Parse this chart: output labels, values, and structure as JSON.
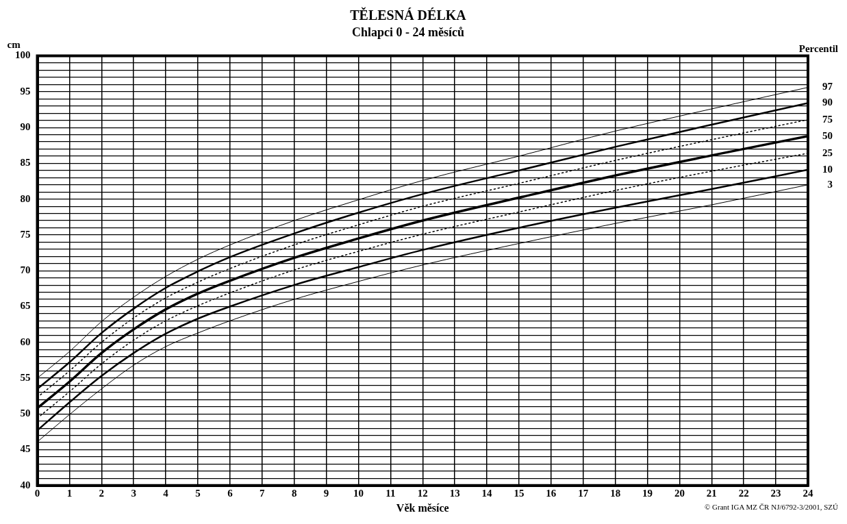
{
  "chart_data": {
    "type": "line",
    "title": "TĚLESNÁ DÉLKA",
    "subtitle": "Chlapci 0 - 24 měsíců",
    "xlabel": "Věk měsíce",
    "ylabel": "cm",
    "legend_title": "Percentil",
    "annotations": [
      "© Grant IGA MZ ČR NJ/6792-3/2001, SZÚ"
    ],
    "x": [
      0,
      1,
      2,
      3,
      4,
      5,
      6,
      8,
      10,
      12,
      15,
      18,
      21,
      24
    ],
    "series": [
      {
        "name": "97",
        "color": "#000000",
        "line_style": "solid",
        "values": [
          55,
          58.7,
          62.9,
          66.3,
          69.2,
          71.6,
          73.6,
          77,
          79.9,
          82.6,
          86,
          89.5,
          92.6,
          95.6
        ]
      },
      {
        "name": "90",
        "color": "#000000",
        "line_style": "solid",
        "values": [
          53.5,
          57.2,
          61.3,
          64.7,
          67.6,
          69.9,
          71.9,
          75.2,
          78.1,
          80.7,
          84,
          87.3,
          90.4,
          93.4
        ]
      },
      {
        "name": "75",
        "color": "#000000",
        "line_style": "dotted",
        "values": [
          52.3,
          56,
          60,
          63.4,
          66.2,
          68.4,
          70.3,
          73.6,
          76.4,
          79,
          82.2,
          85.4,
          88.3,
          91.1
        ]
      },
      {
        "name": "50",
        "color": "#000000",
        "line_style": "solid",
        "values": [
          50.8,
          54.5,
          58.5,
          61.8,
          64.6,
          66.8,
          68.6,
          71.8,
          74.5,
          77,
          80.2,
          83.3,
          86.1,
          88.8
        ]
      },
      {
        "name": "25",
        "color": "#000000",
        "line_style": "dotted",
        "values": [
          49.4,
          53.1,
          57,
          60.3,
          63,
          65.1,
          66.9,
          70.1,
          72.7,
          75.1,
          78.2,
          81.2,
          83.9,
          86.4
        ]
      },
      {
        "name": "10",
        "color": "#000000",
        "line_style": "solid",
        "values": [
          47.7,
          51.6,
          55.3,
          58.5,
          61.2,
          63.3,
          65,
          68,
          70.5,
          72.9,
          76,
          78.8,
          81.4,
          84.1
        ]
      },
      {
        "name": "3",
        "color": "#000000",
        "line_style": "solid",
        "values": [
          46.1,
          49.9,
          53.5,
          56.8,
          59.4,
          61.3,
          63,
          66,
          68.5,
          70.8,
          73.8,
          76.6,
          79.2,
          82
        ]
      }
    ],
    "xlim": [
      0,
      24
    ],
    "xticks": [
      0,
      1,
      2,
      3,
      4,
      5,
      6,
      7,
      8,
      9,
      10,
      11,
      12,
      13,
      14,
      15,
      16,
      17,
      18,
      19,
      20,
      21,
      22,
      23,
      24
    ],
    "ylim": [
      40,
      100
    ],
    "yticks": [
      40,
      {
        "value": 41,
        "label": null
      },
      {
        "value": 42,
        "label": null
      },
      {
        "value": 43,
        "label": null
      },
      {
        "value": 44,
        "label": null
      },
      45,
      {
        "value": 46,
        "label": null
      },
      {
        "value": 47,
        "label": null
      },
      {
        "value": 48,
        "label": null
      },
      {
        "value": 49,
        "label": null
      },
      50,
      {
        "value": 51,
        "label": null
      },
      {
        "value": 52,
        "label": null
      },
      {
        "value": 53,
        "label": null
      },
      {
        "value": 54,
        "label": null
      },
      55,
      {
        "value": 56,
        "label": null
      },
      {
        "value": 57,
        "label": null
      },
      {
        "value": 58,
        "label": null
      },
      {
        "value": 59,
        "label": null
      },
      60,
      {
        "value": 61,
        "label": null
      },
      {
        "value": 62,
        "label": null
      },
      {
        "value": 63,
        "label": null
      },
      {
        "value": 64,
        "label": null
      },
      65,
      {
        "value": 66,
        "label": null
      },
      {
        "value": 67,
        "label": null
      },
      {
        "value": 68,
        "label": null
      },
      {
        "value": 69,
        "label": null
      },
      70,
      {
        "value": 71,
        "label": null
      },
      {
        "value": 72,
        "label": null
      },
      {
        "value": 73,
        "label": null
      },
      {
        "value": 74,
        "label": null
      },
      75,
      {
        "value": 76,
        "label": null
      },
      {
        "value": 77,
        "label": null
      },
      {
        "value": 78,
        "label": null
      },
      {
        "value": 79,
        "label": null
      },
      80,
      {
        "value": 81,
        "label": null
      },
      {
        "value": 82,
        "label": null
      },
      {
        "value": 83,
        "label": null
      },
      {
        "value": 84,
        "label": null
      },
      85,
      {
        "value": 86,
        "label": null
      },
      {
        "value": 87,
        "label": null
      },
      {
        "value": 88,
        "label": null
      },
      {
        "value": 89,
        "label": null
      },
      90,
      {
        "value": 91,
        "label": null
      },
      {
        "value": 92,
        "label": null
      },
      {
        "value": 93,
        "label": null
      },
      {
        "value": 94,
        "label": null
      },
      95,
      {
        "value": 96,
        "label": null
      },
      {
        "value": 97,
        "label": null
      },
      {
        "value": 98,
        "label": null
      },
      {
        "value": 99,
        "label": null
      },
      100
    ],
    "grid": true,
    "legend": false,
    "marker": "none"
  }
}
